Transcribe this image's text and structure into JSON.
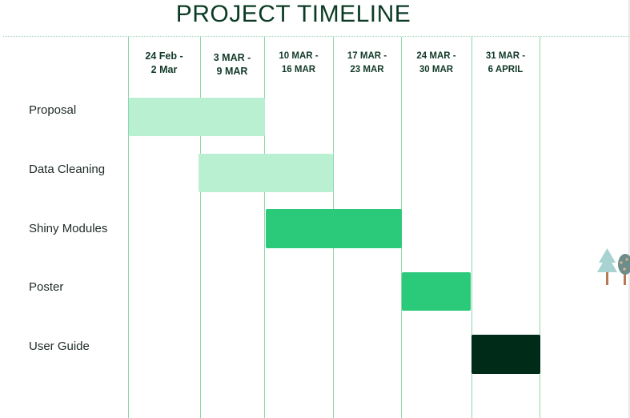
{
  "title": "PROJECT TIMELINE",
  "weeks": [
    {
      "line1": "24 Feb -",
      "line2": "2 Mar"
    },
    {
      "line1": "3 MAR -",
      "line2": "9 MAR"
    },
    {
      "line1": "10 MAR -",
      "line2": "16 MAR"
    },
    {
      "line1": "17 MAR -",
      "line2": "23 MAR"
    },
    {
      "line1": "24 MAR -",
      "line2": "30 MAR"
    },
    {
      "line1": "31 MAR -",
      "line2": "6 APRIL"
    }
  ],
  "tasks": [
    {
      "label": "Proposal",
      "color": "#b9f0d2"
    },
    {
      "label": "Data Cleaning",
      "color": "#b9f0d2"
    },
    {
      "label": "Shiny Modules",
      "color": "#2bc97a"
    },
    {
      "label": "Poster",
      "color": "#2bc97a"
    },
    {
      "label": "User Guide",
      "color": "#002b19"
    }
  ],
  "decoration": {
    "icon": "trees-icon"
  }
}
